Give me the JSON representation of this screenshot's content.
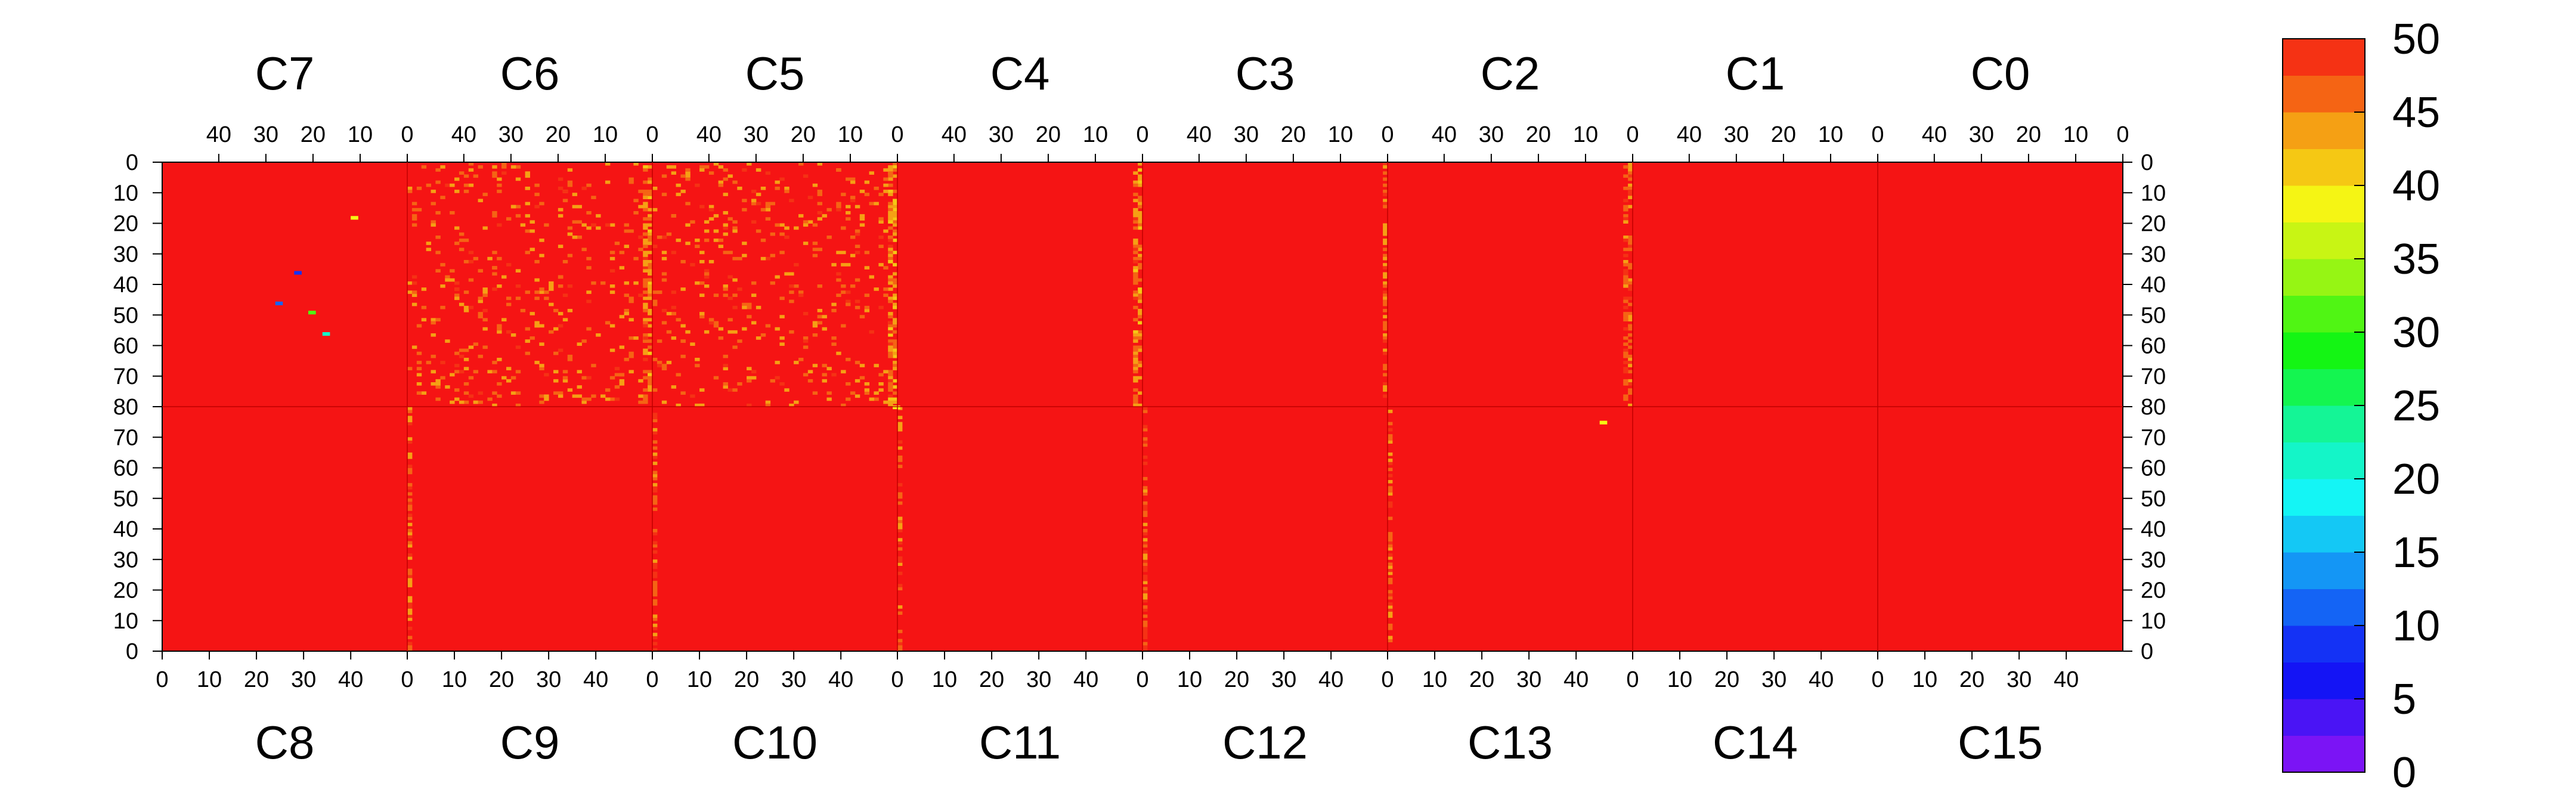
{
  "chart_data": {
    "type": "heatmap",
    "title": "",
    "xlabel": "",
    "ylabel": "",
    "zlim": [
      0,
      50
    ],
    "grid": false,
    "legend": "colorbar-right",
    "top_chips": [
      "C7",
      "C6",
      "C5",
      "C4",
      "C3",
      "C2",
      "C1",
      "C0"
    ],
    "bottom_chips": [
      "C8",
      "C9",
      "C10",
      "C11",
      "C12",
      "C13",
      "C14",
      "C15"
    ],
    "top_x_ticks": [
      {
        "value": 40,
        "label": "40"
      },
      {
        "value": 30,
        "label": "30"
      },
      {
        "value": 20,
        "label": "20"
      },
      {
        "value": 10,
        "label": "10"
      },
      {
        "value": 0,
        "label": "0"
      }
    ],
    "bottom_x_ticks": [
      {
        "value": 0,
        "label": "0"
      },
      {
        "value": 10,
        "label": "10"
      },
      {
        "value": 20,
        "label": "20"
      },
      {
        "value": 30,
        "label": "30"
      },
      {
        "value": 40,
        "label": "40"
      }
    ],
    "x_range_per_chip": [
      0,
      52
    ],
    "y_range_per_half": [
      0,
      80
    ],
    "top_y_ticks": [
      {
        "value": 0,
        "label": "0"
      },
      {
        "value": 10,
        "label": "10"
      },
      {
        "value": 20,
        "label": "20"
      },
      {
        "value": 30,
        "label": "30"
      },
      {
        "value": 40,
        "label": "40"
      },
      {
        "value": 50,
        "label": "50"
      },
      {
        "value": 60,
        "label": "60"
      },
      {
        "value": 70,
        "label": "70"
      },
      {
        "value": 80,
        "label": "80"
      }
    ],
    "bottom_y_ticks": [
      {
        "value": 70,
        "label": "70"
      },
      {
        "value": 60,
        "label": "60"
      },
      {
        "value": 50,
        "label": "50"
      },
      {
        "value": 40,
        "label": "40"
      },
      {
        "value": 30,
        "label": "30"
      },
      {
        "value": 20,
        "label": "20"
      },
      {
        "value": 10,
        "label": "10"
      },
      {
        "value": 0,
        "label": "0"
      }
    ],
    "dominant_value": 50,
    "colorbar": {
      "levels": [
        0,
        2.5,
        5,
        7.5,
        10,
        12.5,
        15,
        17.5,
        20,
        22.5,
        25,
        27.5,
        30,
        32.5,
        35,
        37.5,
        40,
        42.5,
        45,
        47.5,
        50
      ],
      "colors": [
        "#7b14f5",
        "#4a14f5",
        "#1414f5",
        "#1432f5",
        "#1464f5",
        "#1496f5",
        "#14c8f5",
        "#14f5f5",
        "#14f5c8",
        "#14f596",
        "#14f550",
        "#14f514",
        "#50f514",
        "#96f514",
        "#c8f514",
        "#f5f514",
        "#f5c814",
        "#f5a014",
        "#f56414",
        "#f53214",
        "#f51414"
      ],
      "ticks": [
        {
          "value": 0,
          "label": "0"
        },
        {
          "value": 5,
          "label": "5"
        },
        {
          "value": 10,
          "label": "10"
        },
        {
          "value": 15,
          "label": "15"
        },
        {
          "value": 20,
          "label": "20"
        },
        {
          "value": 25,
          "label": "25"
        },
        {
          "value": 30,
          "label": "30"
        },
        {
          "value": 35,
          "label": "35"
        },
        {
          "value": 40,
          "label": "40"
        },
        {
          "value": 45,
          "label": "45"
        },
        {
          "value": 50,
          "label": "50"
        }
      ]
    },
    "hot_columns": [
      {
        "chip": "C6",
        "col": 0,
        "value": 44
      },
      {
        "chip": "C6",
        "col": 1,
        "value": 45
      },
      {
        "chip": "C5",
        "col": 0,
        "value": 44
      },
      {
        "chip": "C5",
        "col": 1,
        "value": 45
      },
      {
        "chip": "C4",
        "col": 0,
        "value": 44
      },
      {
        "chip": "C4",
        "col": 1,
        "value": 45
      },
      {
        "chip": "C3",
        "col": 0,
        "value": 46
      },
      {
        "chip": "C2",
        "col": 0,
        "value": 46
      },
      {
        "chip": "C2",
        "col": 1,
        "value": 47
      },
      {
        "chip": "C9",
        "col": 0,
        "value": 46
      },
      {
        "chip": "C10",
        "col": 0,
        "value": 47
      },
      {
        "chip": "C11",
        "col": 0,
        "value": 46
      },
      {
        "chip": "C12",
        "col": 0,
        "value": 47
      },
      {
        "chip": "C13",
        "col": 0,
        "value": 46
      }
    ],
    "outlier_pixels": [
      {
        "chip": "C7",
        "x": 11,
        "y": 18,
        "value": 38
      },
      {
        "chip": "C7",
        "x": 23,
        "y": 36,
        "value": 8
      },
      {
        "chip": "C7",
        "x": 27,
        "y": 46,
        "value": 12
      },
      {
        "chip": "C7",
        "x": 20,
        "y": 49,
        "value": 30
      },
      {
        "chip": "C7",
        "x": 17,
        "y": 56,
        "value": 20
      },
      {
        "chip": "C5",
        "x": 0,
        "y": 80,
        "value": 38
      },
      {
        "chip": "C13",
        "x": 45,
        "y": 74,
        "value": 38
      }
    ]
  }
}
